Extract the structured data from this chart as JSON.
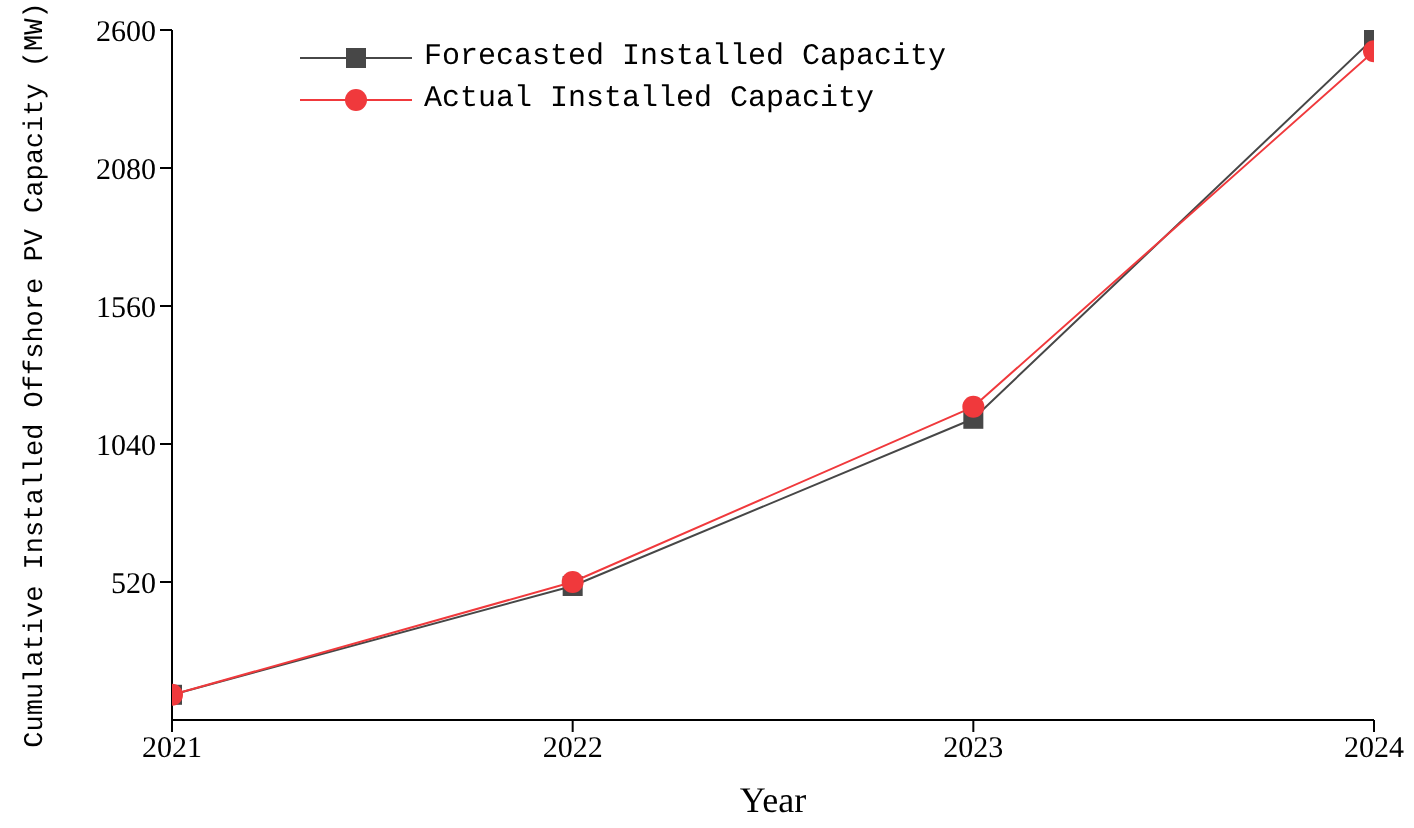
{
  "chart_data": {
    "type": "line",
    "xlabel": "Year",
    "ylabel": "Cumulative Installed Offshore PV Capacity (MW)",
    "x": [
      2021,
      2022,
      2023,
      2024
    ],
    "series": [
      {
        "name": "Forecasted Installed Capacity",
        "color": "#474747",
        "values": [
          95,
          505,
          1135,
          2570
        ],
        "marker": "square"
      },
      {
        "name": "Actual Installed Capacity",
        "color": "#f0393c",
        "values": [
          95,
          520,
          1180,
          2520
        ],
        "marker": "circle"
      }
    ],
    "xlim": [
      2021,
      2024
    ],
    "xticks": [
      2021,
      2022,
      2023,
      2024
    ],
    "ylim": [
      0,
      2600
    ],
    "yticks": [
      520,
      1040,
      1560,
      2080,
      2600
    ],
    "grid": false,
    "legend": "top left",
    "line_style": "solid"
  }
}
